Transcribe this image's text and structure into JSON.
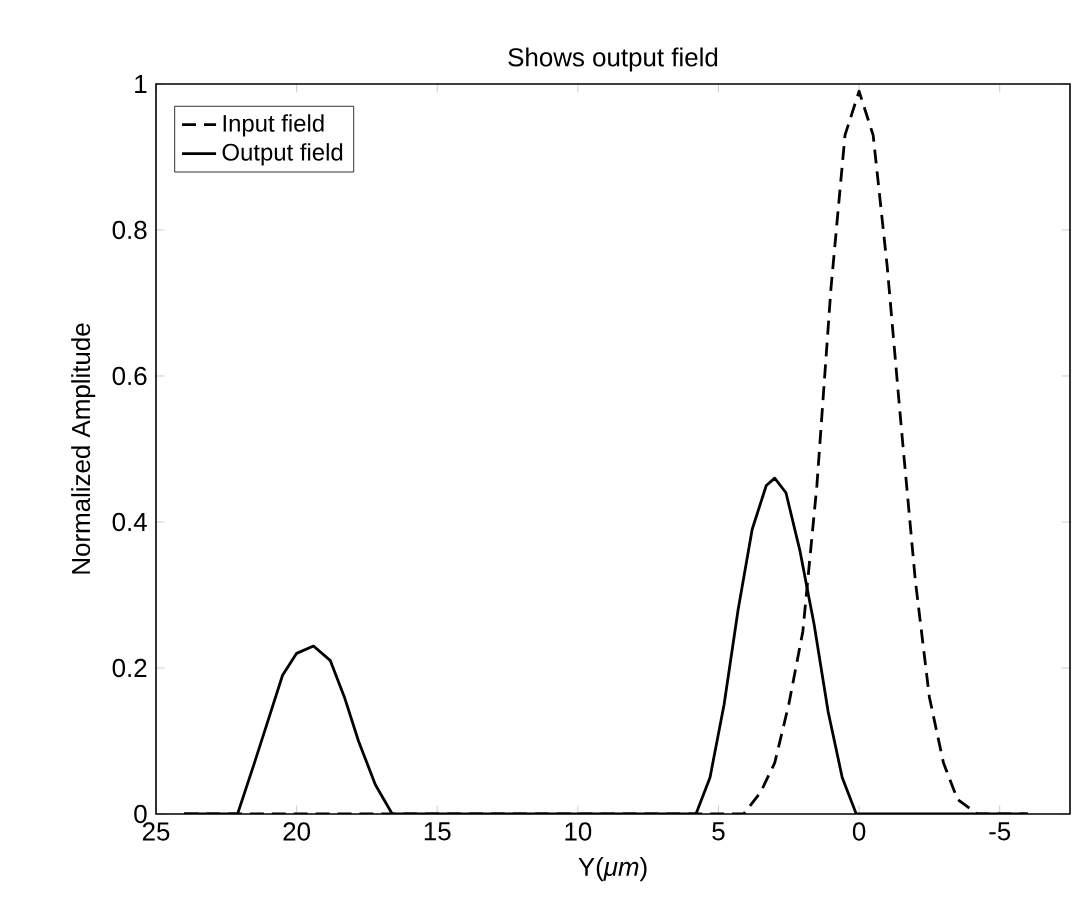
{
  "chart_data": {
    "type": "line",
    "title": "Shows output field",
    "xlabel": "Y(*μm*)",
    "ylabel": "Normalized Amplitude",
    "xlim": [
      25,
      -7.5
    ],
    "ylim": [
      0,
      1
    ],
    "xticks": [
      25,
      20,
      15,
      10,
      5,
      0,
      -5
    ],
    "yticks": [
      0,
      0.2,
      0.4,
      0.6,
      0.8,
      1
    ],
    "grid": false,
    "legend": "top left",
    "marker": "none",
    "series": [
      {
        "name": "Input field",
        "color": "#000000",
        "line_style": "dashed",
        "x": [
          24,
          4.1,
          3.5,
          3,
          2.5,
          2,
          1.5,
          1,
          0.5,
          0,
          -0.5,
          -1,
          -1.5,
          -2,
          -2.5,
          -3,
          -3.5,
          -4.2,
          -6
        ],
        "values": [
          0,
          0,
          0.03,
          0.07,
          0.15,
          0.25,
          0.45,
          0.72,
          0.93,
          0.99,
          0.93,
          0.75,
          0.53,
          0.32,
          0.16,
          0.07,
          0.02,
          0,
          0
        ]
      },
      {
        "name": "Output field",
        "color": "#000000",
        "line_style": "solid",
        "x": [
          24,
          22.1,
          21.5,
          21,
          20.5,
          20,
          19.4,
          18.8,
          18.3,
          17.8,
          17.2,
          16.6,
          5.8,
          5.3,
          4.8,
          4.3,
          3.8,
          3.3,
          3,
          2.6,
          2.1,
          1.6,
          1.1,
          0.6,
          0.1,
          -6
        ],
        "values": [
          0,
          0,
          0.07,
          0.13,
          0.19,
          0.22,
          0.23,
          0.21,
          0.16,
          0.1,
          0.04,
          0,
          0,
          0.05,
          0.15,
          0.28,
          0.39,
          0.45,
          0.46,
          0.44,
          0.36,
          0.26,
          0.14,
          0.05,
          0,
          0
        ]
      }
    ]
  }
}
